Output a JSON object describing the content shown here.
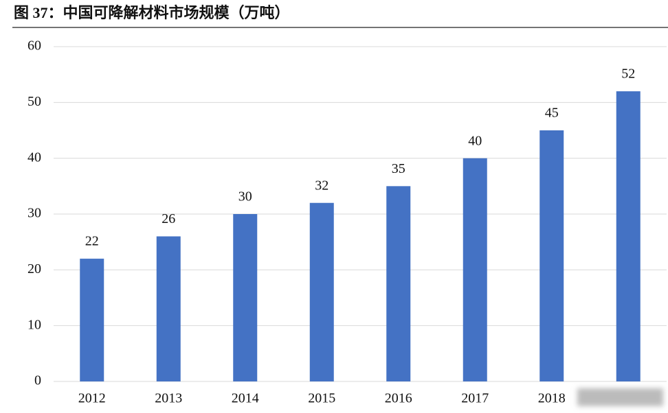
{
  "chart_data": {
    "type": "bar",
    "title": "图 37：中国可降解材料市场规模（万吨）",
    "categories": [
      "2012",
      "2013",
      "2014",
      "2015",
      "2016",
      "2017",
      "2018",
      null
    ],
    "values": [
      22,
      26,
      30,
      32,
      35,
      40,
      45,
      52
    ],
    "color": "#4472c4",
    "ylim": [
      0,
      60
    ],
    "yticks": [
      0,
      10,
      20,
      30,
      40,
      50,
      60
    ],
    "grid": true
  }
}
